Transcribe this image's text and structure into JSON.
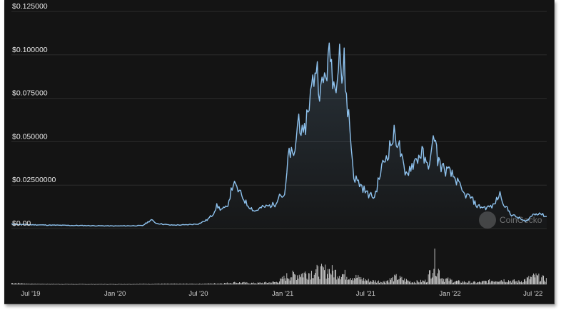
{
  "chart_data": {
    "type": "area",
    "currency_prefix": "$",
    "y_ticks": [
      {
        "value": 0.0,
        "label": "$0.00"
      },
      {
        "value": 0.025,
        "label": "$0.02500000"
      },
      {
        "value": 0.05,
        "label": "$0.050000"
      },
      {
        "value": 0.075,
        "label": "$0.075000"
      },
      {
        "value": 0.1,
        "label": "$0.100000"
      },
      {
        "value": 0.125,
        "label": "$0.125000"
      }
    ],
    "ylim": [
      0,
      0.125
    ],
    "x_ticks": [
      {
        "value": "2019-07-01",
        "label": "Jul '19"
      },
      {
        "value": "2020-01-01",
        "label": "Jan '20"
      },
      {
        "value": "2020-07-01",
        "label": "Jul '20"
      },
      {
        "value": "2021-01-01",
        "label": "Jan '21"
      },
      {
        "value": "2021-07-01",
        "label": "Jul '21"
      },
      {
        "value": "2022-01-01",
        "label": "Jan '22"
      },
      {
        "value": "2022-07-01",
        "label": "Jul '22"
      }
    ],
    "xlim": [
      "2019-05-20",
      "2022-07-31"
    ],
    "grid": true,
    "colors": {
      "background": "#141414",
      "line": "#8ec2ee",
      "volume": "#e8e8e8",
      "grid": "#2c2c2c"
    },
    "price_series": {
      "x": [
        "2019-05-20",
        "2019-07-01",
        "2019-09-01",
        "2019-11-01",
        "2020-01-01",
        "2020-03-01",
        "2020-03-20",
        "2020-04-01",
        "2020-05-01",
        "2020-06-01",
        "2020-07-01",
        "2020-07-20",
        "2020-08-01",
        "2020-08-10",
        "2020-08-20",
        "2020-09-01",
        "2020-09-15",
        "2020-10-01",
        "2020-10-15",
        "2020-11-01",
        "2020-11-15",
        "2020-12-01",
        "2020-12-15",
        "2020-12-25",
        "2021-01-05",
        "2021-01-15",
        "2021-01-25",
        "2021-02-05",
        "2021-02-15",
        "2021-02-25",
        "2021-03-05",
        "2021-03-15",
        "2021-03-25",
        "2021-04-05",
        "2021-04-15",
        "2021-04-25",
        "2021-05-05",
        "2021-05-10",
        "2021-05-15",
        "2021-05-20",
        "2021-05-25",
        "2021-06-05",
        "2021-06-20",
        "2021-07-05",
        "2021-07-20",
        "2021-08-05",
        "2021-08-20",
        "2021-09-01",
        "2021-09-10",
        "2021-09-25",
        "2021-10-05",
        "2021-10-20",
        "2021-11-01",
        "2021-11-10",
        "2021-11-20",
        "2021-11-28",
        "2021-12-05",
        "2021-12-15",
        "2022-01-01",
        "2022-01-15",
        "2022-01-30",
        "2022-02-15",
        "2022-03-01",
        "2022-03-20",
        "2022-04-05",
        "2022-04-20",
        "2022-05-01",
        "2022-05-15",
        "2022-06-01",
        "2022-06-15",
        "2022-07-01",
        "2022-07-15",
        "2022-07-25",
        "2022-07-31"
      ],
      "y": [
        0.0025,
        0.0022,
        0.0019,
        0.0017,
        0.0015,
        0.0017,
        0.005,
        0.003,
        0.002,
        0.0021,
        0.0027,
        0.005,
        0.008,
        0.013,
        0.011,
        0.012,
        0.026,
        0.02,
        0.014,
        0.01,
        0.012,
        0.013,
        0.014,
        0.02,
        0.018,
        0.045,
        0.04,
        0.065,
        0.05,
        0.07,
        0.08,
        0.095,
        0.078,
        0.09,
        0.1,
        0.08,
        0.11,
        0.085,
        0.095,
        0.075,
        0.065,
        0.03,
        0.025,
        0.02,
        0.018,
        0.035,
        0.045,
        0.054,
        0.05,
        0.03,
        0.035,
        0.04,
        0.044,
        0.036,
        0.04,
        0.055,
        0.04,
        0.035,
        0.032,
        0.028,
        0.02,
        0.018,
        0.013,
        0.012,
        0.013,
        0.02,
        0.013,
        0.008,
        0.006,
        0.004,
        0.008,
        0.009,
        0.0075,
        0.007
      ]
    },
    "volume_series": {
      "x": [
        "2019-05-20",
        "2019-07-01",
        "2019-10-01",
        "2020-01-01",
        "2020-04-01",
        "2020-07-01",
        "2020-08-20",
        "2020-09-20",
        "2020-11-01",
        "2020-12-20",
        "2021-01-10",
        "2021-02-10",
        "2021-03-10",
        "2021-04-10",
        "2021-05-10",
        "2021-06-10",
        "2021-07-10",
        "2021-08-10",
        "2021-09-05",
        "2021-10-10",
        "2021-11-10",
        "2021-11-28",
        "2021-12-15",
        "2022-01-15",
        "2022-03-01",
        "2022-04-20",
        "2022-06-01",
        "2022-07-05",
        "2022-07-31"
      ],
      "relative_height": [
        0.06,
        0.02,
        0.01,
        0.01,
        0.02,
        0.02,
        0.04,
        0.08,
        0.05,
        0.1,
        0.35,
        0.45,
        0.55,
        0.6,
        0.45,
        0.3,
        0.15,
        0.12,
        0.3,
        0.1,
        0.15,
        1.0,
        0.25,
        0.12,
        0.08,
        0.2,
        0.12,
        0.35,
        0.2
      ]
    }
  },
  "watermark": {
    "text": "CoinGecko",
    "icon": "coingecko-logo-icon"
  }
}
